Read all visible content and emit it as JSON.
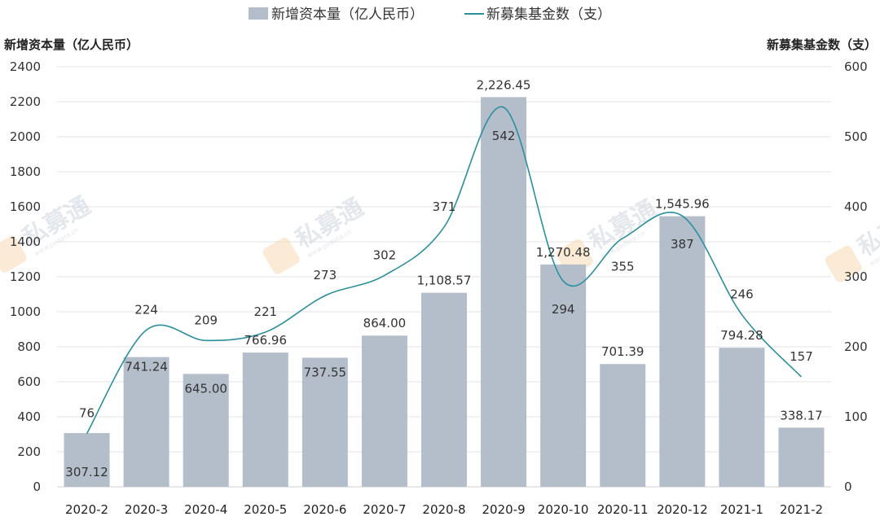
{
  "chart_data": {
    "type": "bar",
    "categories": [
      "2020-2",
      "2020-3",
      "2020-4",
      "2020-5",
      "2020-6",
      "2020-7",
      "2020-8",
      "2020-9",
      "2020-10",
      "2020-11",
      "2020-12",
      "2021-1",
      "2021-2"
    ],
    "series": [
      {
        "name": "新增资本量（亿人民币）",
        "type": "bar",
        "axis": "left",
        "color": "#b4becb",
        "values": [
          307.12,
          741.24,
          645.0,
          766.96,
          737.55,
          864.0,
          1108.57,
          2226.45,
          1270.48,
          701.39,
          1545.96,
          794.28,
          338.17
        ],
        "labels": [
          "307.12",
          "741.24",
          "645.00",
          "766.96",
          "737.55",
          "864.00",
          "1,108.57",
          "2,226.45",
          "1,270.48",
          "701.39",
          "1,545.96",
          "794.28",
          "338.17"
        ]
      },
      {
        "name": "新募集基金数（支）",
        "type": "line",
        "axis": "right",
        "color": "#2b8f9c",
        "values": [
          76,
          224,
          209,
          221,
          273,
          302,
          371,
          542,
          294,
          355,
          387,
          246,
          157
        ],
        "labels": [
          "76",
          "224",
          "209",
          "221",
          "273",
          "302",
          "371",
          "542",
          "294",
          "355",
          "387",
          "246",
          "157"
        ]
      }
    ],
    "y_left": {
      "label": "新增资本量（亿人民币）",
      "ylim": [
        0,
        2400
      ],
      "ticks": [
        0,
        200,
        400,
        600,
        800,
        1000,
        1200,
        1400,
        1600,
        1800,
        2000,
        2200,
        2400
      ]
    },
    "y_right": {
      "label": "新募集基金数（支）",
      "ylim": [
        0,
        600
      ],
      "ticks": [
        0,
        100,
        200,
        300,
        400,
        500,
        600
      ]
    },
    "grid": true,
    "legend": {
      "position": "top-center",
      "items": [
        "新增资本量（亿人民币）",
        "新募集基金数（支）"
      ]
    }
  },
  "watermark": {
    "text": "私募通",
    "url": "www.pedata.cn"
  }
}
